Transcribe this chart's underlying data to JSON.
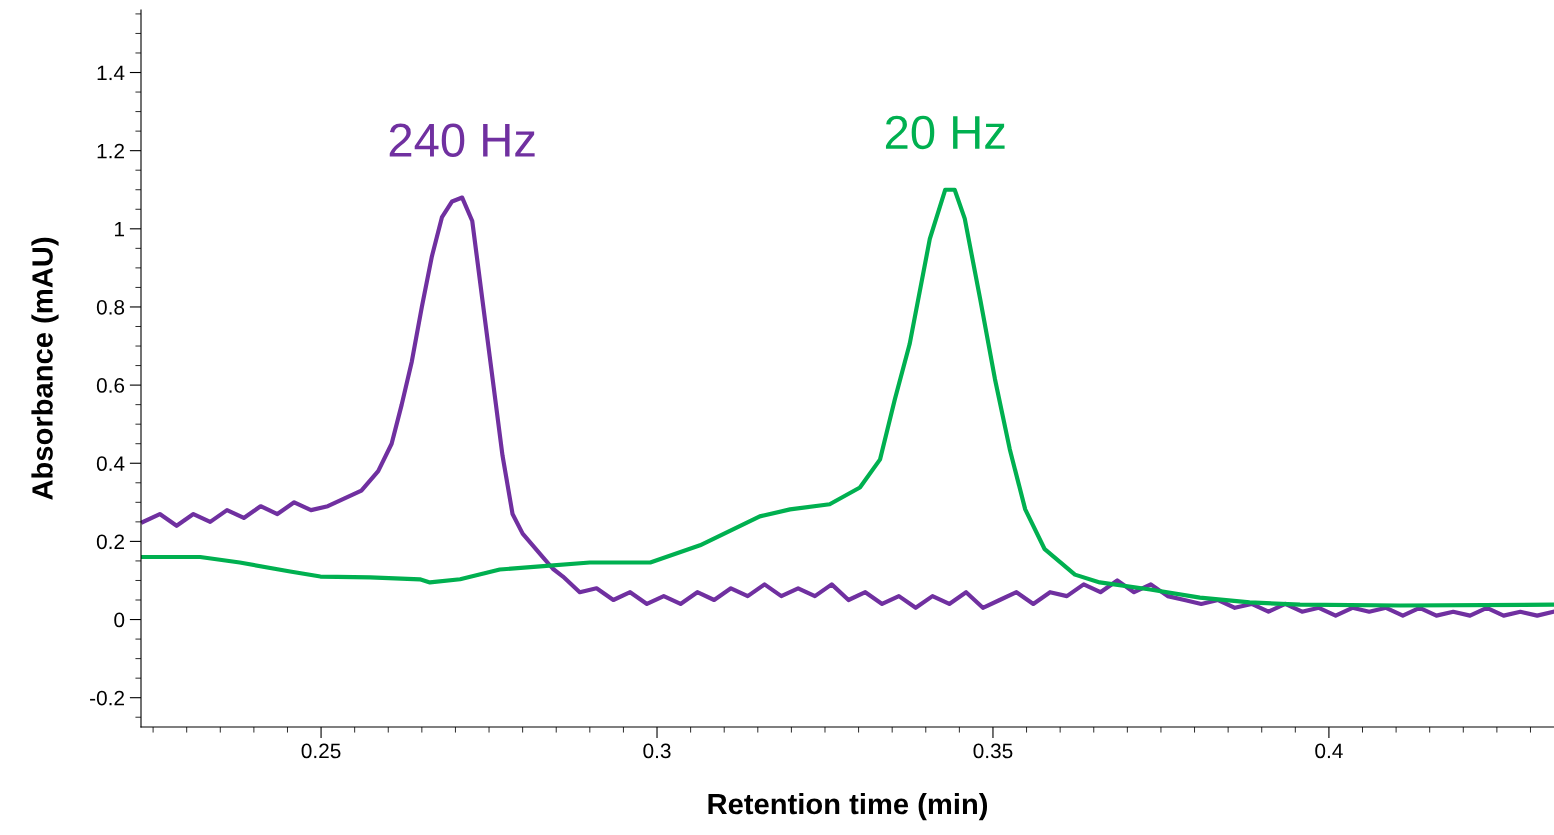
{
  "chart_data": {
    "type": "line",
    "xlabel": "Retention time (min)",
    "ylabel": "Absorbance (mAU)",
    "xlim": [
      0.2232,
      0.4335
    ],
    "ylim": [
      -0.275,
      1.56
    ],
    "xticks": [
      0.25,
      0.3,
      0.35,
      0.4
    ],
    "yticks": [
      -0.2,
      0,
      0.2,
      0.4,
      0.6,
      0.8,
      1,
      1.2,
      1.4
    ],
    "grid": false,
    "legend": false,
    "marker": "none",
    "line_style": "solid",
    "series": [
      {
        "name": "240 Hz",
        "color": "#7030a0",
        "x": [
          0.2235,
          0.226,
          0.2285,
          0.231,
          0.2335,
          0.236,
          0.2385,
          0.241,
          0.2435,
          0.246,
          0.2485,
          0.251,
          0.2535,
          0.256,
          0.2585,
          0.2605,
          0.262,
          0.2635,
          0.265,
          0.2665,
          0.268,
          0.2695,
          0.271,
          0.2725,
          0.274,
          0.2755,
          0.277,
          0.2785,
          0.28,
          0.2815,
          0.283,
          0.2845,
          0.286,
          0.2885,
          0.291,
          0.2935,
          0.296,
          0.2985,
          0.301,
          0.3035,
          0.306,
          0.3085,
          0.311,
          0.3135,
          0.316,
          0.3185,
          0.321,
          0.3235,
          0.326,
          0.3285,
          0.331,
          0.3335,
          0.336,
          0.3385,
          0.341,
          0.3435,
          0.346,
          0.3485,
          0.351,
          0.3535,
          0.356,
          0.3585,
          0.361,
          0.3635,
          0.366,
          0.3685,
          0.371,
          0.3735,
          0.376,
          0.3785,
          0.381,
          0.3835,
          0.386,
          0.3885,
          0.391,
          0.3935,
          0.396,
          0.3985,
          0.401,
          0.4035,
          0.406,
          0.4085,
          0.411,
          0.4135,
          0.416,
          0.4185,
          0.421,
          0.4235,
          0.426,
          0.4285,
          0.431,
          0.4335
        ],
        "values": [
          0.25,
          0.27,
          0.24,
          0.27,
          0.25,
          0.28,
          0.26,
          0.29,
          0.27,
          0.3,
          0.28,
          0.29,
          0.31,
          0.33,
          0.38,
          0.45,
          0.55,
          0.66,
          0.8,
          0.93,
          1.03,
          1.07,
          1.08,
          1.02,
          0.82,
          0.62,
          0.42,
          0.27,
          0.22,
          0.19,
          0.16,
          0.13,
          0.11,
          0.07,
          0.08,
          0.05,
          0.07,
          0.04,
          0.06,
          0.04,
          0.07,
          0.05,
          0.08,
          0.06,
          0.09,
          0.06,
          0.08,
          0.06,
          0.09,
          0.05,
          0.07,
          0.04,
          0.06,
          0.03,
          0.06,
          0.04,
          0.07,
          0.03,
          0.05,
          0.07,
          0.04,
          0.07,
          0.06,
          0.09,
          0.07,
          0.1,
          0.07,
          0.09,
          0.06,
          0.05,
          0.04,
          0.05,
          0.03,
          0.04,
          0.02,
          0.04,
          0.02,
          0.03,
          0.01,
          0.03,
          0.02,
          0.03,
          0.01,
          0.03,
          0.01,
          0.02,
          0.01,
          0.03,
          0.01,
          0.02,
          0.01,
          0.02
        ]
      },
      {
        "name": "20 Hz",
        "color": "#00b050",
        "x": [
          0.2232,
          0.232,
          0.2379,
          0.2454,
          0.2499,
          0.2573,
          0.2647,
          0.2662,
          0.2707,
          0.2766,
          0.2826,
          0.29,
          0.299,
          0.3064,
          0.3153,
          0.3198,
          0.3257,
          0.3302,
          0.3332,
          0.3354,
          0.3376,
          0.3406,
          0.3429,
          0.3443,
          0.3458,
          0.3481,
          0.3503,
          0.3525,
          0.3548,
          0.3577,
          0.3622,
          0.3659,
          0.3734,
          0.3808,
          0.3882,
          0.3957,
          0.4106,
          0.4335
        ],
        "values": [
          0.16,
          0.16,
          0.146,
          0.123,
          0.11,
          0.108,
          0.103,
          0.095,
          0.103,
          0.128,
          0.136,
          0.146,
          0.146,
          0.19,
          0.264,
          0.282,
          0.295,
          0.338,
          0.41,
          0.564,
          0.705,
          0.974,
          1.1,
          1.1,
          1.026,
          0.82,
          0.615,
          0.436,
          0.282,
          0.18,
          0.115,
          0.095,
          0.077,
          0.056,
          0.044,
          0.038,
          0.036,
          0.038
        ]
      }
    ]
  }
}
